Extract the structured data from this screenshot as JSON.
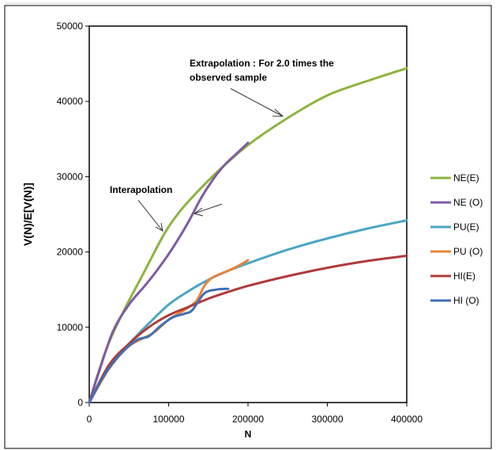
{
  "chart_data": {
    "type": "line",
    "title": "",
    "xlabel": "N",
    "ylabel": "V(N)/E[V(N)]",
    "xlim": [
      0,
      400000
    ],
    "ylim": [
      0,
      50000
    ],
    "x_ticks": [
      "0",
      "100000",
      "200000",
      "300000",
      "400000"
    ],
    "y_ticks": [
      "0",
      "10000",
      "20000",
      "30000",
      "40000",
      "50000"
    ],
    "grid": false,
    "legend_position": "right",
    "annotations": {
      "extrapolation_line1": "Extrapolation : For 2.0 times the",
      "extrapolation_line2": "observed sample",
      "interapolation": "Interapolation"
    },
    "series": [
      {
        "name": "NE(E)",
        "color": "#8db43e",
        "points": [
          [
            0,
            0
          ],
          [
            10000,
            3500
          ],
          [
            25000,
            8000
          ],
          [
            45000,
            12500
          ],
          [
            70000,
            17500
          ],
          [
            95000,
            22500
          ],
          [
            115000,
            25500
          ],
          [
            140000,
            28400
          ],
          [
            165000,
            31000
          ],
          [
            200000,
            34200
          ],
          [
            250000,
            37800
          ],
          [
            300000,
            40800
          ],
          [
            350000,
            42700
          ],
          [
            400000,
            44400
          ]
        ]
      },
      {
        "name": "NE (O)",
        "color": "#7f5aa6",
        "points": [
          [
            0,
            0
          ],
          [
            12000,
            4000
          ],
          [
            30000,
            9500
          ],
          [
            50000,
            13000
          ],
          [
            70000,
            15500
          ],
          [
            85000,
            17500
          ],
          [
            105000,
            20500
          ],
          [
            125000,
            24000
          ],
          [
            140000,
            27000
          ],
          [
            155000,
            29500
          ],
          [
            170000,
            31500
          ],
          [
            185000,
            33000
          ],
          [
            200000,
            34500
          ]
        ]
      },
      {
        "name": "PU(E)",
        "color": "#4aa6c2",
        "points": [
          [
            0,
            0
          ],
          [
            25000,
            5000
          ],
          [
            50000,
            7800
          ],
          [
            75000,
            10500
          ],
          [
            100000,
            13000
          ],
          [
            125000,
            14800
          ],
          [
            150000,
            16300
          ],
          [
            175000,
            17500
          ],
          [
            200000,
            18500
          ],
          [
            250000,
            20300
          ],
          [
            300000,
            21800
          ],
          [
            350000,
            23100
          ],
          [
            400000,
            24200
          ]
        ]
      },
      {
        "name": "PU (O)",
        "color": "#e8833a",
        "points": [
          [
            0,
            0
          ],
          [
            25000,
            4500
          ],
          [
            50000,
            7500
          ],
          [
            80000,
            9200
          ],
          [
            100000,
            11000
          ],
          [
            120000,
            12300
          ],
          [
            135000,
            13500
          ],
          [
            145000,
            15500
          ],
          [
            155000,
            16600
          ],
          [
            170000,
            17300
          ],
          [
            185000,
            18000
          ],
          [
            200000,
            18900
          ]
        ]
      },
      {
        "name": "HI(E)",
        "color": "#b03a3a",
        "points": [
          [
            0,
            0
          ],
          [
            25000,
            5000
          ],
          [
            50000,
            7800
          ],
          [
            75000,
            10000
          ],
          [
            100000,
            11600
          ],
          [
            125000,
            12700
          ],
          [
            150000,
            13800
          ],
          [
            175000,
            14700
          ],
          [
            200000,
            15500
          ],
          [
            250000,
            16800
          ],
          [
            300000,
            17900
          ],
          [
            350000,
            18800
          ],
          [
            400000,
            19500
          ]
        ]
      },
      {
        "name": "HI (O)",
        "color": "#3f6fb5",
        "points": [
          [
            0,
            0
          ],
          [
            20000,
            3800
          ],
          [
            40000,
            6500
          ],
          [
            60000,
            8300
          ],
          [
            75000,
            8800
          ],
          [
            90000,
            10200
          ],
          [
            105000,
            11300
          ],
          [
            120000,
            11800
          ],
          [
            130000,
            12300
          ],
          [
            145000,
            14500
          ],
          [
            160000,
            15000
          ],
          [
            175000,
            15100
          ]
        ]
      }
    ]
  }
}
